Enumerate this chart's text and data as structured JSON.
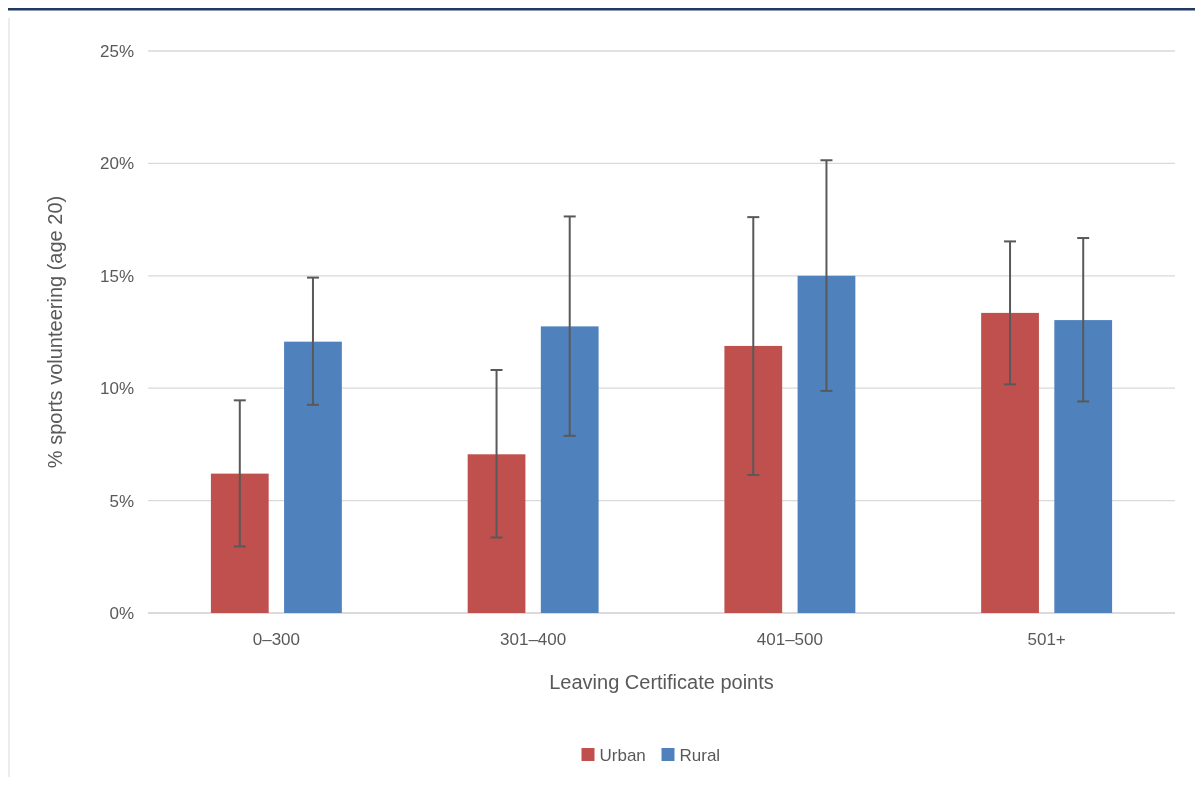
{
  "chart_data": {
    "type": "bar",
    "xlabel": "Leaving Certificate points",
    "ylabel": "% sports volunteering (age 20)",
    "categories": [
      "0–300",
      "301–400",
      "401–500",
      "501+"
    ],
    "series": [
      {
        "name": "Urban",
        "color": "#c0504d",
        "values": [
          6.2,
          7.06,
          11.88,
          13.35
        ],
        "errors": [
          [
            2.96,
            9.46
          ],
          [
            3.36,
            10.81
          ],
          [
            6.14,
            17.61
          ],
          [
            10.17,
            16.53
          ]
        ]
      },
      {
        "name": "Rural",
        "color": "#4f81bd",
        "values": [
          12.07,
          12.75,
          15.0,
          13.03
        ],
        "errors": [
          [
            9.26,
            14.92
          ],
          [
            7.88,
            17.64
          ],
          [
            9.88,
            20.14
          ],
          [
            9.41,
            16.68
          ]
        ]
      }
    ],
    "ylim": [
      0,
      25
    ],
    "yticks": [
      {
        "value": 0,
        "label": "0%"
      },
      {
        "value": 5,
        "label": "5%"
      },
      {
        "value": 10,
        "label": "10%"
      },
      {
        "value": 15,
        "label": "15%"
      },
      {
        "value": 20,
        "label": "20%"
      },
      {
        "value": 25,
        "label": "25%"
      }
    ],
    "grid": "y",
    "legend": "bottom"
  }
}
